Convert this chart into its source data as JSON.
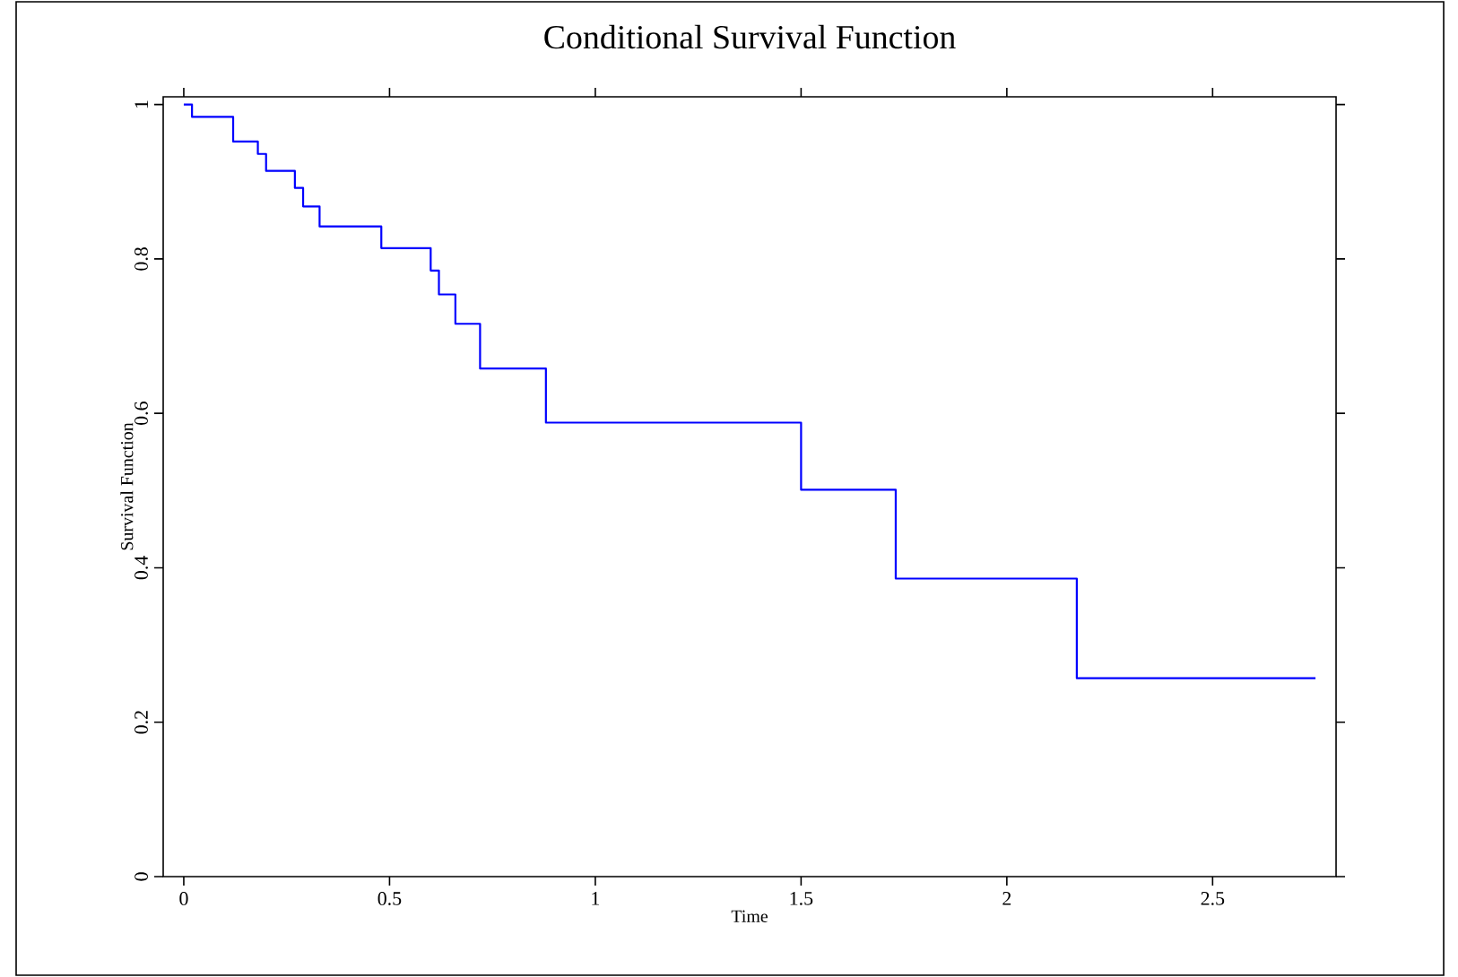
{
  "chart_data": {
    "type": "step",
    "title": "Conditional Survival Function",
    "xlabel": "Time",
    "ylabel": "Survival Function",
    "x": [
      0,
      0.02,
      0.12,
      0.18,
      0.2,
      0.27,
      0.29,
      0.33,
      0.48,
      0.6,
      0.62,
      0.66,
      0.72,
      0.88,
      1.5,
      1.73,
      2.17,
      2.75
    ],
    "series": [
      {
        "color": "#0000ff",
        "values": [
          1,
          0.984,
          0.952,
          0.936,
          0.914,
          0.892,
          0.868,
          0.842,
          0.814,
          0.785,
          0.754,
          0.716,
          0.658,
          0.588,
          0.501,
          0.386,
          0.257,
          0.257
        ]
      }
    ],
    "xlim": [
      -0.05,
      2.8
    ],
    "ylim": [
      0,
      1.01
    ],
    "xticks": [
      0,
      0.5,
      1,
      1.5,
      2,
      2.5
    ],
    "yticks": [
      0,
      0.2,
      0.4,
      0.6,
      0.8,
      1
    ],
    "grid": false,
    "marker": "none",
    "line_style": "solid"
  }
}
